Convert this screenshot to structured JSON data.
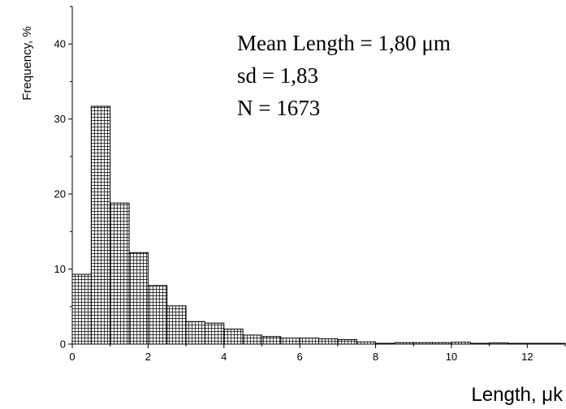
{
  "chart_data": {
    "type": "bar",
    "xlabel": "Length, μk",
    "ylabel": "Frequency, %",
    "xlim": [
      0,
      13
    ],
    "ylim": [
      0,
      45
    ],
    "xticks": [
      "0",
      "2",
      "4",
      "6",
      "8",
      "10",
      "12"
    ],
    "yticks": [
      "0",
      "10",
      "20",
      "30",
      "40"
    ],
    "bin_width": 0.5,
    "bin_starts": [
      0,
      0.5,
      1.0,
      1.5,
      2.0,
      2.5,
      3.0,
      3.5,
      4.0,
      4.5,
      5.0,
      5.5,
      6.0,
      6.5,
      7.0,
      7.5,
      8.0,
      8.5,
      9.0,
      9.5,
      10.0,
      10.5,
      11.0,
      11.5,
      12.0,
      12.5
    ],
    "values": [
      9.3,
      31.7,
      18.8,
      12.2,
      7.8,
      5.1,
      3.0,
      2.8,
      2.0,
      1.2,
      1.0,
      0.8,
      0.8,
      0.7,
      0.6,
      0.3,
      0.1,
      0.2,
      0.2,
      0.2,
      0.25,
      0.1,
      0.15,
      0.1,
      0.1,
      0.1
    ],
    "annotations": [
      "Mean Length = 1,80 μm",
      "sd = 1,83",
      "N = 1673"
    ],
    "grid": false,
    "bar_pattern": "crosshatch"
  }
}
